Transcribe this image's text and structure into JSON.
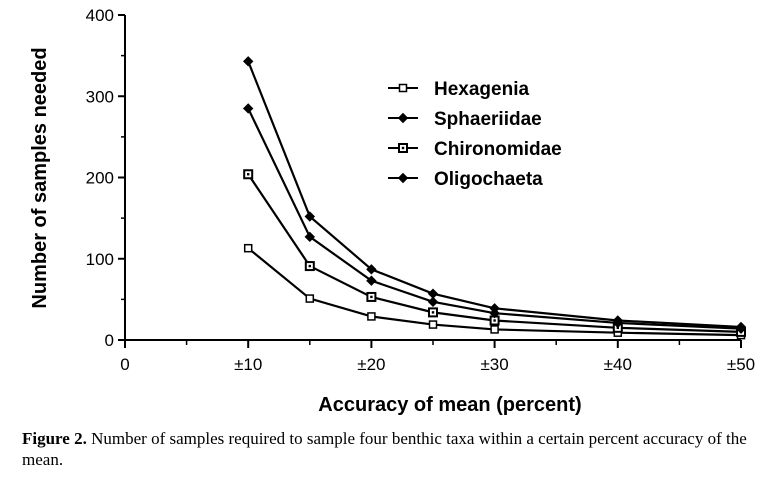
{
  "chart_data": {
    "type": "line",
    "title": "",
    "xlabel": "Accuracy of mean (percent)",
    "ylabel": "Number of samples needed",
    "x": [
      10,
      15,
      20,
      25,
      30,
      40,
      50
    ],
    "xlim": [
      0,
      50
    ],
    "ylim": [
      0,
      400
    ],
    "x_ticks": [
      {
        "value": 0,
        "label": "0"
      },
      {
        "value": 10,
        "label": "±10"
      },
      {
        "value": 20,
        "label": "±20"
      },
      {
        "value": 30,
        "label": "±30"
      },
      {
        "value": 40,
        "label": "±40"
      },
      {
        "value": 50,
        "label": "±50"
      }
    ],
    "y_ticks": [
      {
        "value": 0,
        "label": "0"
      },
      {
        "value": 100,
        "label": "100"
      },
      {
        "value": 200,
        "label": "200"
      },
      {
        "value": 300,
        "label": "300"
      },
      {
        "value": 400,
        "label": "400"
      }
    ],
    "grid": false,
    "legend_position": "top-right",
    "series": [
      {
        "name": "Hexagenia",
        "marker": "open-square",
        "values": [
          113,
          51,
          29,
          19,
          13,
          9,
          6
        ]
      },
      {
        "name": "Sphaeriidae",
        "marker": "filled-diamond",
        "values": [
          343,
          152,
          87,
          57,
          39,
          24,
          16
        ]
      },
      {
        "name": "Chironomidae",
        "marker": "dot-square",
        "values": [
          204,
          91,
          53,
          34,
          24,
          15,
          10
        ]
      },
      {
        "name": "Oligochaeta",
        "marker": "filled-diamond",
        "values": [
          285,
          127,
          73,
          47,
          33,
          21,
          14
        ]
      }
    ]
  },
  "caption": {
    "label": "Figure 2.",
    "text": " Number of samples required to sample four benthic taxa within a certain percent accuracy of the mean."
  }
}
